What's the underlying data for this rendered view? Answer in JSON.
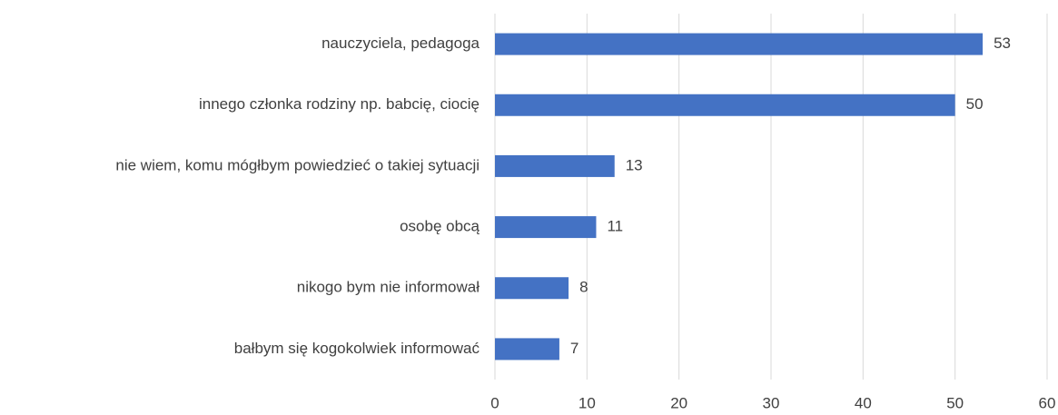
{
  "chart_data": {
    "type": "bar",
    "orientation": "horizontal",
    "categories": [
      "nauczyciela, pedagoga",
      "innego członka rodziny np. babcię, ciocię",
      "nie wiem, komu mógłbym powiedzieć o takiej sytuacji",
      "osobę obcą",
      "nikogo bym nie informował",
      "bałbym się kogokolwiek informować"
    ],
    "values": [
      53,
      50,
      13,
      11,
      8,
      7
    ],
    "color": "#4472c4",
    "xlim": [
      0,
      60
    ],
    "xticks": [
      0,
      10,
      20,
      30,
      40,
      50,
      60
    ],
    "grid": true
  }
}
